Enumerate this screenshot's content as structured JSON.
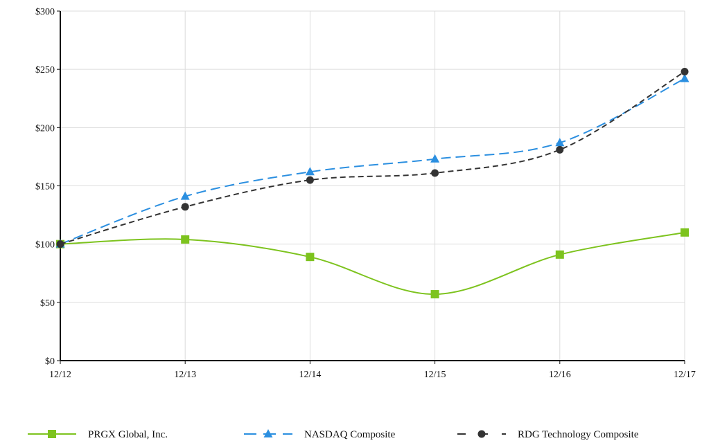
{
  "chart_data": {
    "type": "line",
    "categories": [
      "12/12",
      "12/13",
      "12/14",
      "12/15",
      "12/16",
      "12/17"
    ],
    "y_tick_labels": [
      "$0",
      "$50",
      "$100",
      "$150",
      "$200",
      "$250",
      "$300"
    ],
    "y_ticks": [
      0,
      50,
      100,
      150,
      200,
      250,
      300
    ],
    "ylim": [
      0,
      300
    ],
    "grid": true,
    "legend_position": "bottom",
    "series": [
      {
        "name": "PRGX Global, Inc.",
        "values": [
          100,
          104,
          89,
          57,
          91,
          110
        ],
        "color": "#7dc31e",
        "line_style": "solid",
        "marker": "square"
      },
      {
        "name": "NASDAQ Composite",
        "values": [
          100,
          141,
          162,
          173,
          187,
          242
        ],
        "color": "#2b8fe0",
        "line_style": "dashed",
        "marker": "triangle"
      },
      {
        "name": "RDG Technology Composite",
        "values": [
          100,
          132,
          155,
          161,
          181,
          248
        ],
        "color": "#333333",
        "line_style": "dashed",
        "marker": "circle"
      }
    ]
  }
}
